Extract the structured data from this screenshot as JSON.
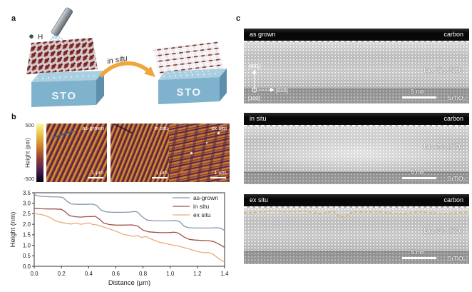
{
  "figure": {
    "panel_a_label": "a",
    "panel_b_label": "b",
    "panel_c_label": "c"
  },
  "panel_a": {
    "hydrogen_label": "H",
    "arrow_label": "in situ",
    "substrate_left": "STO",
    "substrate_right": "STO"
  },
  "panel_b": {
    "colorbar": {
      "max": "500",
      "min": "-500",
      "label": "Height (pm)"
    },
    "afm": [
      {
        "label": "as-grown",
        "scalebar": "1 μm"
      },
      {
        "label": "in situ",
        "scalebar": "1 μm"
      },
      {
        "label": "ex situ",
        "scalebar": "1 μm"
      }
    ]
  },
  "panel_c": {
    "tem": [
      {
        "label": "as grown",
        "coating": "carbon",
        "film": "La₀.₈Sr₀.₂NiO₃",
        "substrate": "SrTiO₃",
        "scalebar": "5 nm"
      },
      {
        "label": "in situ",
        "coating": "carbon",
        "film": "La₀.₈Sr₀.₂NiO₃",
        "substrate": "SrTiO₃",
        "scalebar": "5 nm"
      },
      {
        "label": "ex situ",
        "coating": "carbon",
        "film": "La₀.₈Sr₀.₂NiO₃",
        "substrate": "SrTiO₃",
        "scalebar": "5 nm"
      }
    ],
    "axes": {
      "up": "[001]",
      "right": "[010]",
      "out": "[100]"
    }
  },
  "colors": {
    "sto_blue": "#7fb2cd",
    "arrow_orange": "#f0a63a",
    "degradation_line": "#e0b052",
    "afm_orange": "#d8913a",
    "afm_purple": "#56264a"
  },
  "chart_data": {
    "type": "line",
    "title": "",
    "xlabel": "Distance (μm)",
    "ylabel": "Height (nm)",
    "xlim": [
      0.0,
      1.4
    ],
    "ylim": [
      0.0,
      3.5
    ],
    "xticks": [
      0.0,
      0.2,
      0.4,
      0.6,
      0.8,
      1.0,
      1.2,
      1.4
    ],
    "yticks": [
      0.0,
      0.5,
      1.0,
      1.5,
      2.0,
      2.5,
      3.0,
      3.5
    ],
    "grid": false,
    "legend_position": "top-right",
    "series": [
      {
        "name": "as-grown",
        "color": "#8497a9",
        "x": [
          0,
          0.02,
          0.06,
          0.12,
          0.18,
          0.21,
          0.24,
          0.27,
          0.32,
          0.38,
          0.43,
          0.46,
          0.49,
          0.53,
          0.58,
          0.64,
          0.7,
          0.74,
          0.76,
          0.79,
          0.83,
          0.88,
          0.94,
          1.0,
          1.04,
          1.07,
          1.1,
          1.13,
          1.18,
          1.24,
          1.3,
          1.34,
          1.37,
          1.4
        ],
        "y": [
          3.42,
          3.36,
          3.33,
          3.31,
          3.3,
          3.28,
          3.1,
          2.97,
          2.95,
          2.95,
          2.96,
          2.9,
          2.68,
          2.59,
          2.57,
          2.57,
          2.58,
          2.61,
          2.58,
          2.38,
          2.2,
          2.17,
          2.16,
          2.17,
          2.18,
          2.12,
          1.92,
          1.84,
          1.82,
          1.82,
          1.82,
          1.84,
          1.81,
          1.71
        ]
      },
      {
        "name": "in situ",
        "color": "#a05048",
        "x": [
          0,
          0.05,
          0.1,
          0.15,
          0.2,
          0.23,
          0.26,
          0.3,
          0.34,
          0.38,
          0.42,
          0.45,
          0.48,
          0.51,
          0.55,
          0.6,
          0.66,
          0.72,
          0.76,
          0.8,
          0.84,
          0.88,
          0.93,
          0.98,
          1.03,
          1.06,
          1.1,
          1.14,
          1.18,
          1.23,
          1.28,
          1.32,
          1.36,
          1.4
        ],
        "y": [
          2.76,
          2.74,
          2.73,
          2.73,
          2.71,
          2.58,
          2.41,
          2.36,
          2.34,
          2.36,
          2.37,
          2.38,
          2.24,
          2.06,
          1.99,
          1.96,
          1.96,
          1.97,
          1.92,
          1.72,
          1.64,
          1.62,
          1.6,
          1.6,
          1.62,
          1.58,
          1.4,
          1.28,
          1.25,
          1.23,
          1.22,
          1.18,
          1.05,
          0.9
        ]
      },
      {
        "name": "ex situ",
        "color": "#ecab7d",
        "x": [
          0,
          0.04,
          0.08,
          0.12,
          0.15,
          0.19,
          0.23,
          0.27,
          0.31,
          0.34,
          0.37,
          0.4,
          0.43,
          0.46,
          0.5,
          0.54,
          0.58,
          0.62,
          0.66,
          0.7,
          0.73,
          0.76,
          0.79,
          0.82,
          0.85,
          0.89,
          0.93,
          0.97,
          1.01,
          1.06,
          1.1,
          1.15,
          1.19,
          1.24,
          1.28,
          1.31,
          1.34,
          1.37,
          1.4
        ],
        "y": [
          2.5,
          2.48,
          2.42,
          2.31,
          2.19,
          2.1,
          2.05,
          2.01,
          2.06,
          2.0,
          2.03,
          2.07,
          1.99,
          1.97,
          1.89,
          1.8,
          1.72,
          1.62,
          1.51,
          1.47,
          1.42,
          1.47,
          1.37,
          1.42,
          1.33,
          1.22,
          1.13,
          1.08,
          1.02,
          0.97,
          0.89,
          0.81,
          0.72,
          0.65,
          0.66,
          0.6,
          0.45,
          0.3,
          0.2
        ]
      }
    ]
  }
}
